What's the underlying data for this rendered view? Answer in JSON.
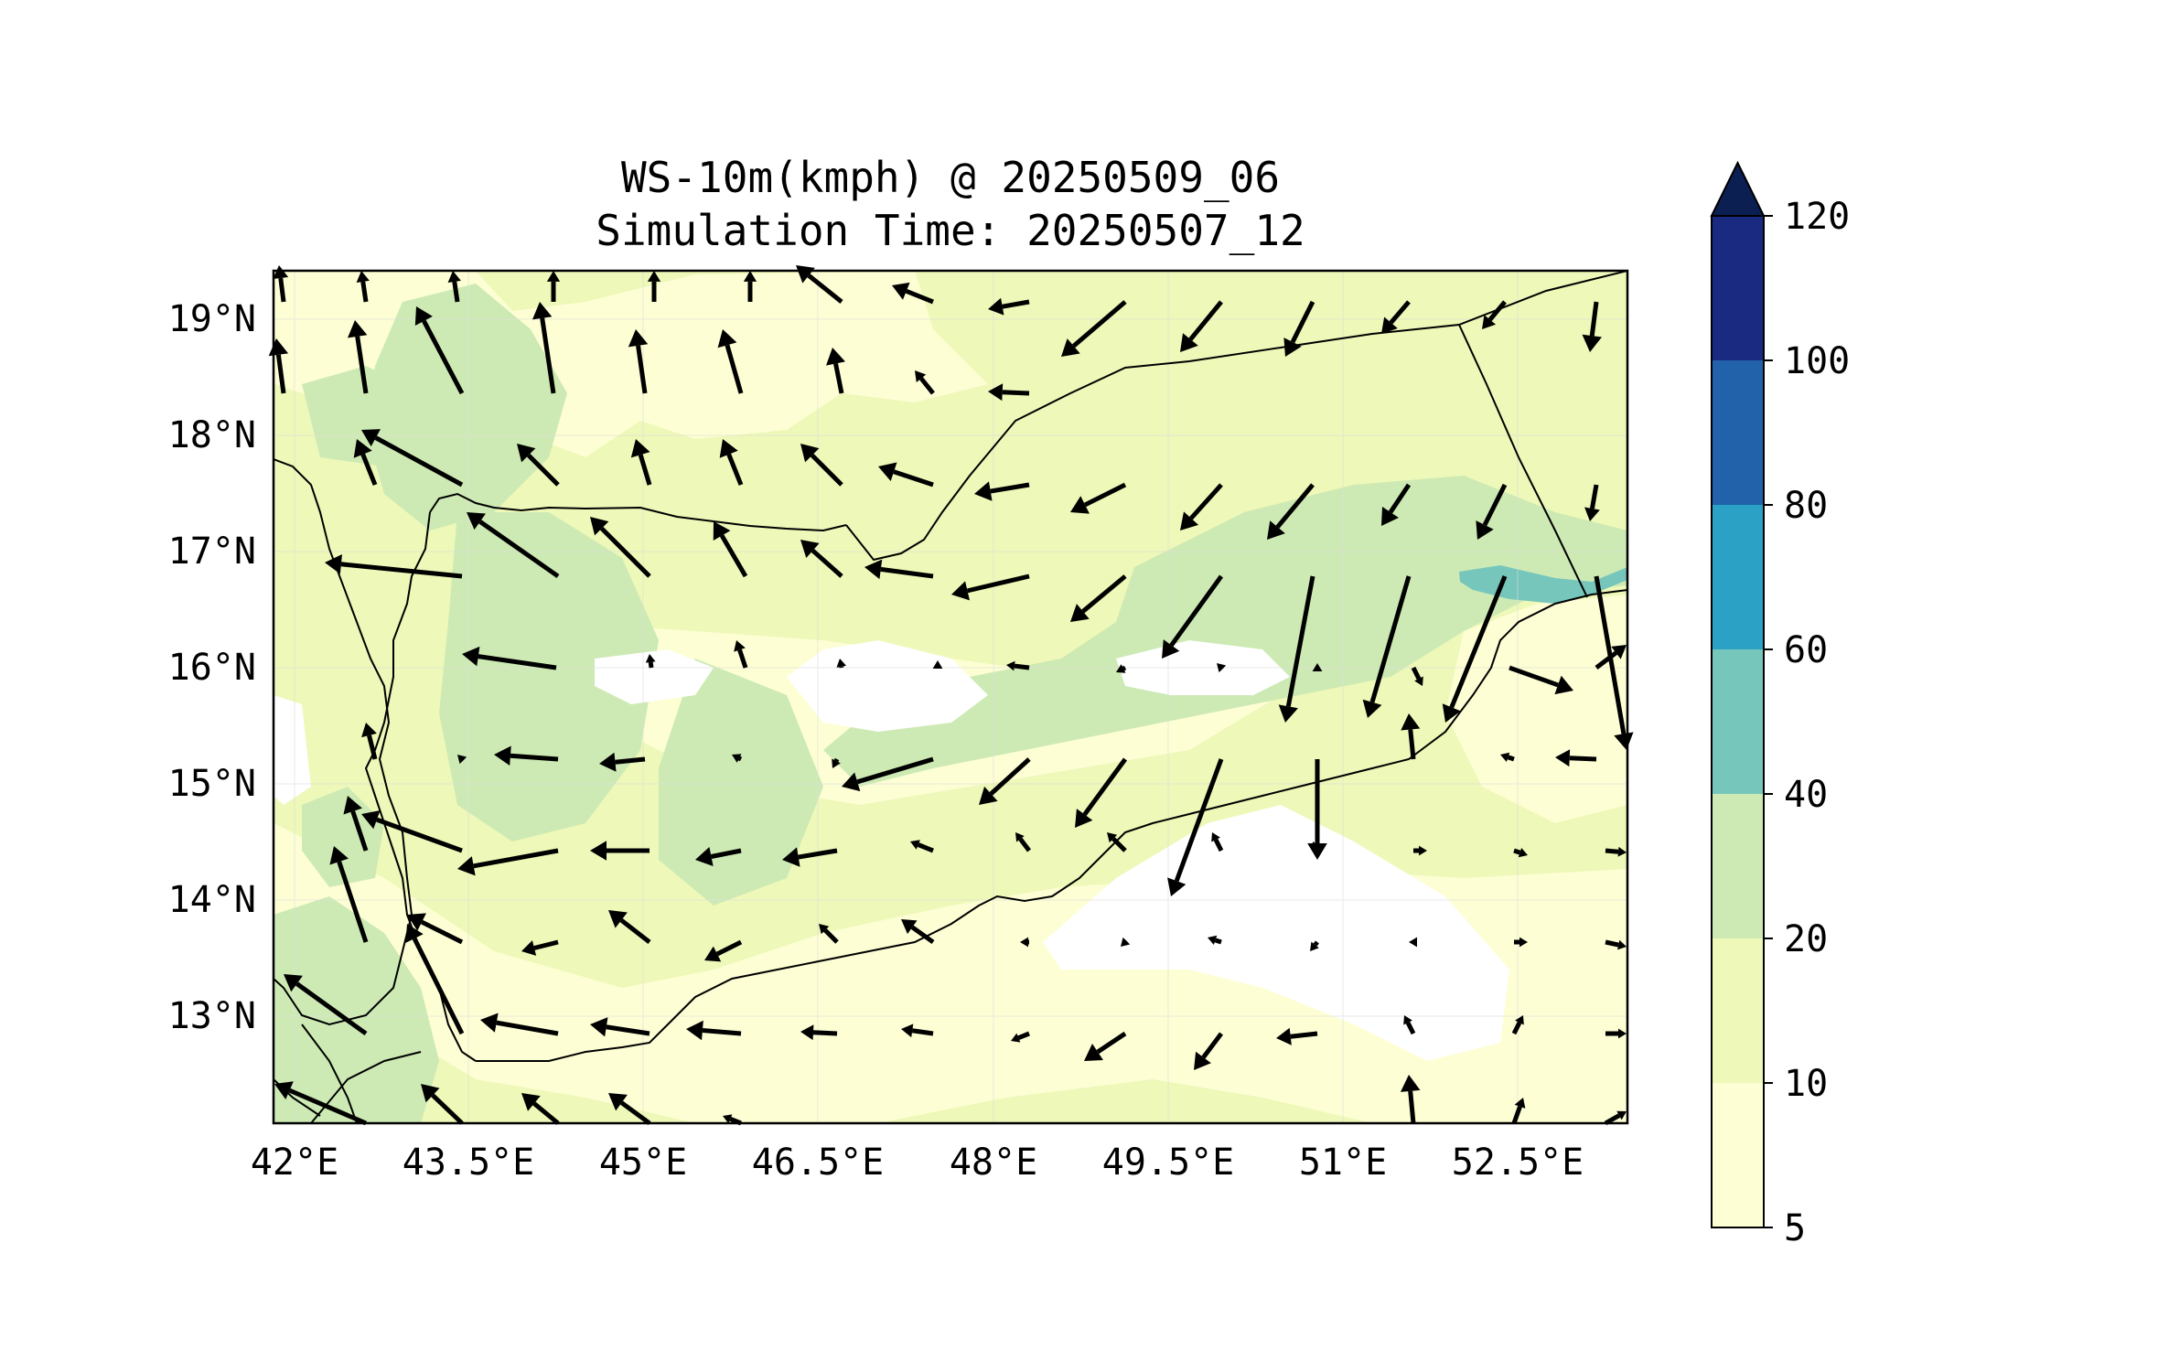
{
  "chart_data": {
    "type": "map",
    "title_line1": "WS-10m(kmph) @ 20250509_06",
    "title_line2": "Simulation Time: 20250507_12",
    "x_ticks": [
      "42°E",
      "43.5°E",
      "45°E",
      "46.5°E",
      "48°E",
      "49.5°E",
      "51°E",
      "52.5°E"
    ],
    "y_ticks": [
      "19°N",
      "18°N",
      "17°N",
      "16°N",
      "15°N",
      "14°N",
      "13°N"
    ],
    "lon_range": [
      41.9,
      53.55
    ],
    "lat_range": [
      12.1,
      19.45
    ],
    "colorbar": {
      "levels": [
        5,
        10,
        20,
        40,
        60,
        80,
        100,
        120
      ],
      "labels": [
        "5",
        "10",
        "20",
        "40",
        "60",
        "80",
        "100",
        "120"
      ],
      "colors": [
        "#fdfed4",
        "#eef8b8",
        "#cdeab4",
        "#76c6bc",
        "#2ba2c5",
        "#2162aa",
        "#1a2a80"
      ],
      "extend_color": "#0b1f52",
      "extend": "max"
    },
    "palette": {
      "land_base": "#eef8b8",
      "light": "#fdfed4",
      "mid": "#cdeab4",
      "calm": "#ffffff",
      "jet": "#76c6bc"
    }
  }
}
